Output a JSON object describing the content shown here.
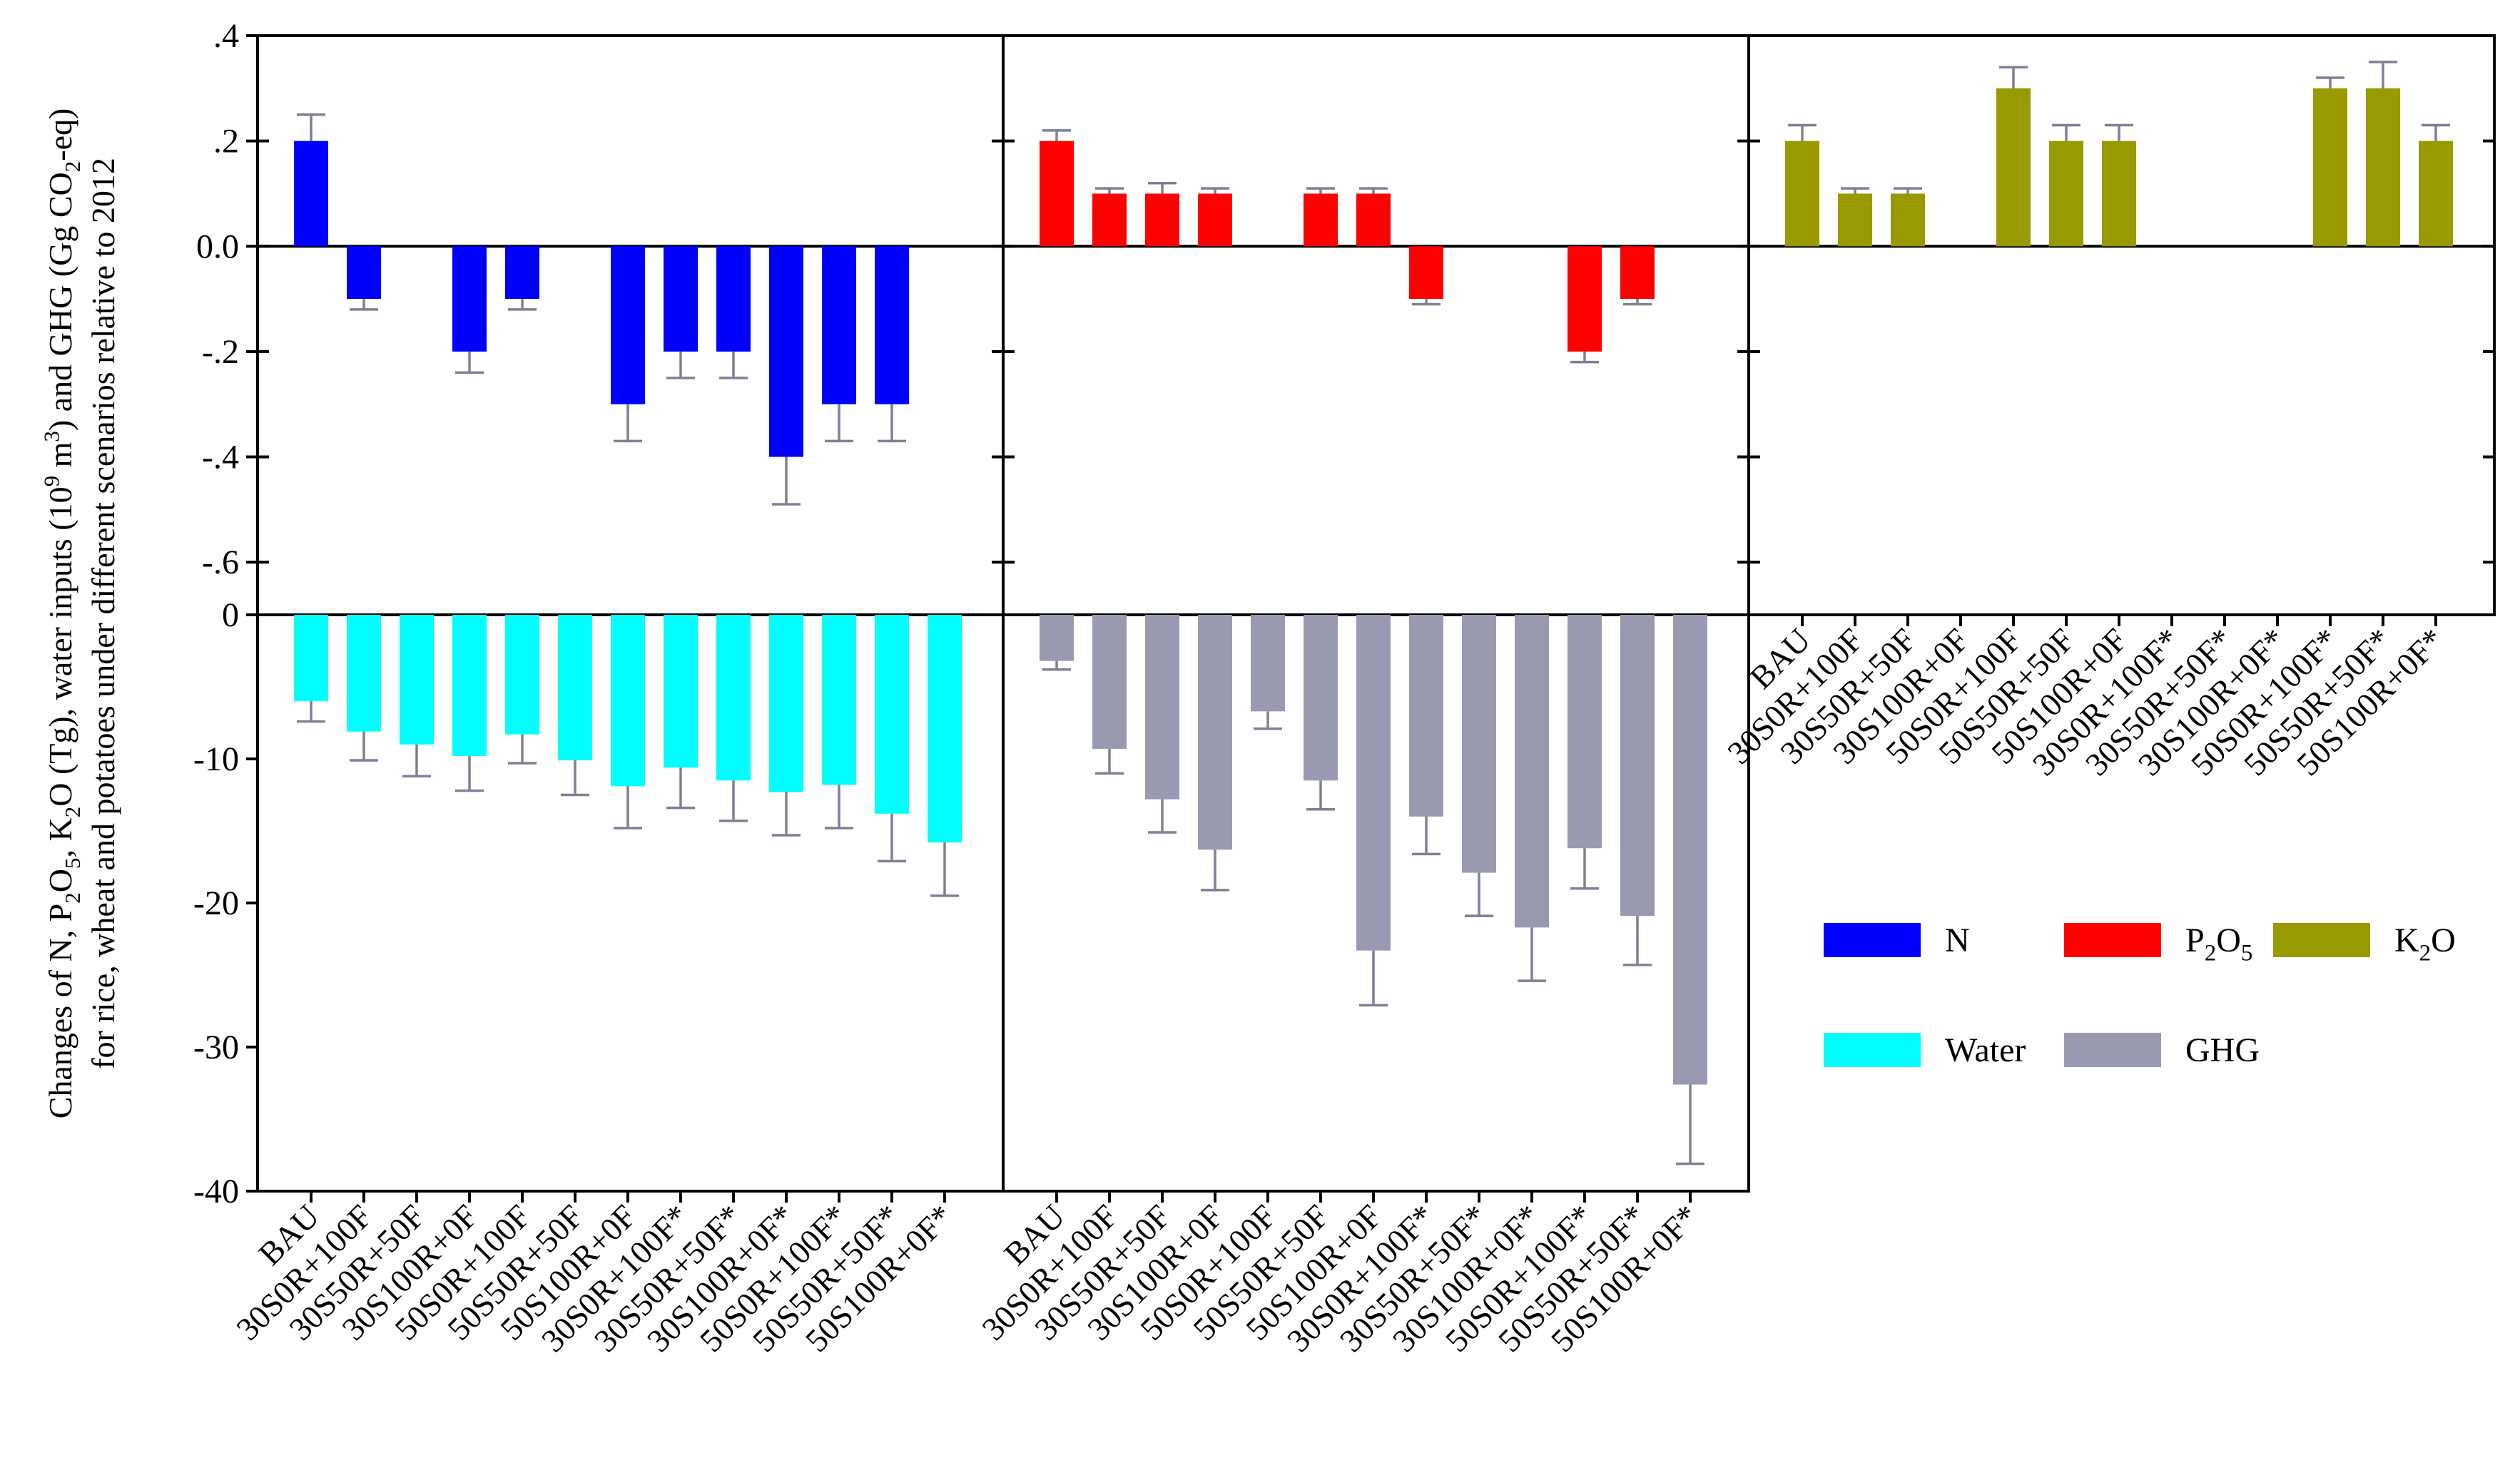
{
  "chart_data": {
    "type": "bar",
    "ylabel_lines": [
      "Changes of N, P2O5, K2O (Tg), water inputs (10^9 m^3) and GHG (Gg CO2-eq)",
      "for rice, wheat and potatoes under different scenarios relative to 2012"
    ],
    "categories": [
      "BAU",
      "30S0R+100F",
      "30S50R+50F",
      "30S100R+0F",
      "50S0R+100F",
      "50S50R+50F",
      "50S100R+0F",
      "30S0R+100F*",
      "30S50R+50F*",
      "30S100R+0F*",
      "50S0R+100F*",
      "50S50R+50F*",
      "50S100R+0F*"
    ],
    "top_axis": {
      "ylim": [
        -0.7,
        0.4
      ],
      "ticks": [
        0.4,
        0.2,
        0.0,
        -0.2,
        -0.4,
        -0.6
      ],
      "tick_labels": [
        ".4",
        ".2",
        "0.0",
        "-.2",
        "-.4",
        "-.6"
      ]
    },
    "bottom_axis": {
      "ylim": [
        -40,
        0
      ],
      "ticks": [
        0,
        -10,
        -20,
        -30,
        -40
      ],
      "tick_labels": [
        "0",
        "-10",
        "-20",
        "-30",
        "-40"
      ]
    },
    "series": [
      {
        "name": "N",
        "panel": "top-left",
        "color": "#0000ff",
        "values": [
          0.2,
          -0.1,
          0,
          -0.2,
          -0.1,
          0,
          -0.3,
          -0.2,
          -0.2,
          -0.4,
          -0.3,
          -0.3,
          0
        ],
        "errors": [
          0.05,
          0.02,
          0,
          0.04,
          0.02,
          0,
          0.07,
          0.05,
          0.05,
          0.09,
          0.07,
          0.07,
          0
        ]
      },
      {
        "name": "P2O5",
        "panel": "top-middle",
        "color": "#ff0000",
        "values": [
          0.2,
          0.1,
          0.1,
          0.1,
          0,
          0.1,
          0.1,
          -0.1,
          0,
          0,
          -0.2,
          -0.1,
          0
        ],
        "errors": [
          0.02,
          0.01,
          0.02,
          0.01,
          0,
          0.01,
          0.01,
          0.01,
          0,
          0,
          0.02,
          0.01,
          0
        ]
      },
      {
        "name": "K2O",
        "panel": "top-right",
        "color": "#999900",
        "values": [
          0.2,
          0.1,
          0.1,
          0,
          0.3,
          0.2,
          0.2,
          0,
          0,
          0,
          0.3,
          0.3,
          0.2
        ],
        "errors": [
          0.03,
          0.01,
          0.01,
          0,
          0.04,
          0.03,
          0.03,
          0,
          0,
          0,
          0.02,
          0.05,
          0.03
        ]
      },
      {
        "name": "Water",
        "panel": "bottom-left",
        "color": "#00ffff",
        "values": [
          -6.0,
          -8.1,
          -9.0,
          -9.8,
          -8.3,
          -10.1,
          -11.9,
          -10.6,
          -11.5,
          -12.3,
          -11.8,
          -13.8,
          -15.8
        ],
        "errors": [
          1.4,
          2.0,
          2.2,
          2.4,
          2.0,
          2.4,
          2.9,
          2.8,
          2.8,
          3.0,
          3.0,
          3.3,
          3.7
        ]
      },
      {
        "name": "GHG",
        "panel": "bottom-middle",
        "color": "#9999b1",
        "values": [
          -3.2,
          -9.3,
          -12.8,
          -16.3,
          -6.7,
          -11.5,
          -23.3,
          -14.0,
          -17.9,
          -21.7,
          -16.2,
          -20.9,
          -32.6
        ],
        "errors": [
          0.6,
          1.7,
          2.3,
          2.8,
          1.2,
          2.0,
          3.8,
          2.6,
          3.0,
          3.7,
          2.8,
          3.4,
          5.5
        ]
      }
    ],
    "legend": {
      "row1": [
        {
          "label": "N",
          "color": "#0000ff"
        },
        {
          "label": "P2O5",
          "color": "#ff0000"
        },
        {
          "label": "K2O",
          "color": "#999900"
        }
      ],
      "row2": [
        {
          "label": "Water",
          "color": "#00ffff"
        },
        {
          "label": "GHG",
          "color": "#9999b1"
        }
      ]
    }
  }
}
